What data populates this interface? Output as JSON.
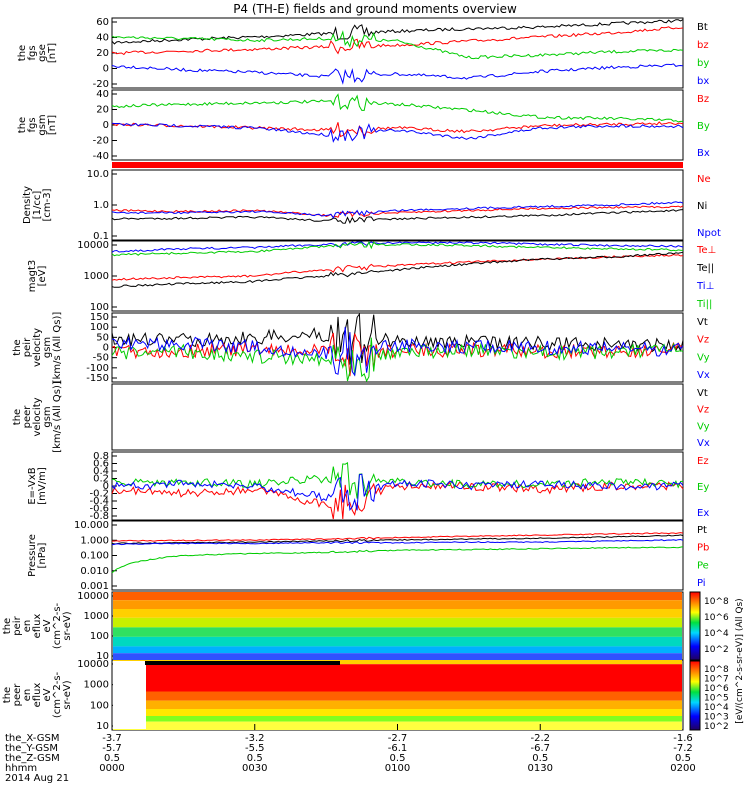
{
  "title": "P4 (TH-E) fields and ground moments overview",
  "colors": {
    "black": "#000000",
    "red": "#ff0000",
    "green": "#00cc00",
    "blue": "#0000ff"
  },
  "panels": [
    {
      "id": "fgs-gse",
      "ylabel": [
        "the",
        "fgs",
        "gse",
        "[nT]"
      ],
      "ticks": [
        "60",
        "40",
        "20",
        "0",
        "-20"
      ],
      "ylim": [
        -22,
        63
      ],
      "legend": [
        {
          "t": "Bt",
          "c": "black"
        },
        {
          "t": "bz",
          "c": "red"
        },
        {
          "t": "by",
          "c": "green"
        },
        {
          "t": "bx",
          "c": "blue"
        }
      ]
    },
    {
      "id": "fgs-gsm",
      "ylabel": [
        "the",
        "fgs",
        "gsm",
        "[nT]"
      ],
      "ticks": [
        "40",
        "20",
        "0",
        "-20",
        "-40"
      ],
      "ylim": [
        -50,
        48
      ],
      "legend": [
        {
          "t": "Bz",
          "c": "red"
        },
        {
          "t": "By",
          "c": "green"
        },
        {
          "t": "Bx",
          "c": "blue"
        }
      ]
    },
    {
      "id": "density",
      "ylabel": [
        "Density",
        "[1/cc]",
        "[cm-3]"
      ],
      "ticks": [
        "10.0",
        "1.0",
        "0.1"
      ],
      "log": true,
      "legend": [
        {
          "t": "Ne",
          "c": "red"
        },
        {
          "t": "Ni",
          "c": "black"
        },
        {
          "t": "Npot",
          "c": "blue"
        }
      ]
    },
    {
      "id": "temperature",
      "ylabel": [
        "magt3",
        "[eV]"
      ],
      "ticks": [
        "10000",
        "1000",
        "100"
      ],
      "log": true,
      "legend": [
        {
          "t": "Te⊥",
          "c": "red"
        },
        {
          "t": "Te||",
          "c": "black"
        },
        {
          "t": "Ti⊥",
          "c": "blue"
        },
        {
          "t": "Ti||",
          "c": "green"
        }
      ]
    },
    {
      "id": "peir-velocity",
      "ylabel": [
        "the",
        "peir",
        "velocity",
        "gsm",
        "[km/s (All Qs)]"
      ],
      "ticks": [
        "150",
        "100",
        "50",
        "0",
        "-50",
        "-100",
        "-150"
      ],
      "ylim": [
        -160,
        160
      ],
      "legend": [
        {
          "t": "Vt",
          "c": "black"
        },
        {
          "t": "Vz",
          "c": "red"
        },
        {
          "t": "Vy",
          "c": "green"
        },
        {
          "t": "Vx",
          "c": "blue"
        }
      ]
    },
    {
      "id": "peer-velocity",
      "ylabel": [
        "the",
        "peer",
        "velocity",
        "gsm",
        "[km/s (All Qs)]"
      ],
      "ticks": [],
      "legend": [
        {
          "t": "Vt",
          "c": "black"
        },
        {
          "t": "Vz",
          "c": "red"
        },
        {
          "t": "Vy",
          "c": "green"
        },
        {
          "t": "Vx",
          "c": "blue"
        }
      ]
    },
    {
      "id": "efield",
      "ylabel": [
        "E=-VxB",
        "[mV/m]"
      ],
      "ticks": [
        "0.8",
        "0.6",
        "0.4",
        "0.2",
        "0",
        "-0.2",
        "-0.4",
        "-0.6",
        "-0.8"
      ],
      "ylim": [
        -0.9,
        0.9
      ],
      "legend": [
        {
          "t": "Ez",
          "c": "red"
        },
        {
          "t": "Ey",
          "c": "green"
        },
        {
          "t": "Ex",
          "c": "blue"
        }
      ]
    },
    {
      "id": "pressure",
      "ylabel": [
        "Pressure",
        "[nPa]"
      ],
      "ticks": [
        "10.000",
        "1.000",
        "0.100",
        "0.010",
        "0.001"
      ],
      "log": true,
      "legend": [
        {
          "t": "Pt",
          "c": "black"
        },
        {
          "t": "Pb",
          "c": "red"
        },
        {
          "t": "Pe",
          "c": "green"
        },
        {
          "t": "Pi",
          "c": "blue"
        }
      ]
    },
    {
      "id": "peir-eflux",
      "ylabel": [
        "the",
        "peir",
        "en",
        "eflux",
        "eV",
        "(cm^2-s-",
        "sr-eV)"
      ],
      "ticks": [
        "10000",
        "1000",
        "100",
        "10"
      ]
    },
    {
      "id": "peer-eflux",
      "ylabel": [
        "the",
        "peer",
        "en",
        "eflux",
        "eV",
        "(cm^2-s-",
        "sr-eV)"
      ],
      "ticks": [
        "10000",
        "1000",
        "100",
        "10"
      ]
    }
  ],
  "colorbar": {
    "label": "[eV/(cm^2-s-sr-eV)] (All Qs)",
    "ticks1": [
      "10^8",
      "10^6",
      "10^4",
      "10^2"
    ],
    "ticks2": [
      "10^8",
      "10^7",
      "10^6",
      "10^5",
      "10^4",
      "10^3",
      "10^2"
    ]
  },
  "xaxis": {
    "row_labels": [
      "the_X-GSM",
      "the_Y-GSM",
      "the_Z-GSM",
      "hhmm",
      "2014 Aug 21"
    ],
    "columns": [
      {
        "x": "-3.7",
        "y": "-5.7",
        "z": "0.5",
        "t": "0000"
      },
      {
        "x": "-3.2",
        "y": "-5.5",
        "z": "0.5",
        "t": "0030"
      },
      {
        "x": "-2.7",
        "y": "-6.1",
        "z": "0.5",
        "t": "0100"
      },
      {
        "x": "-2.2",
        "y": "-6.7",
        "z": "0.5",
        "t": "0130"
      },
      {
        "x": "-1.6",
        "y": "-7.2",
        "z": "0.5",
        "t": "0200"
      }
    ]
  },
  "chart_data": {
    "type": "line",
    "x_unit": "hhmm UT, 2014 Aug 21",
    "x": [
      "0000",
      "0015",
      "0030",
      "0045",
      "0100",
      "0115",
      "0130",
      "0145",
      "0200"
    ],
    "panels": [
      {
        "name": "the fgs gse [nT]",
        "series": [
          {
            "name": "Bt",
            "values": [
              33,
              37,
              40,
              44,
              47,
              50,
              52,
              56,
              60
            ]
          },
          {
            "name": "bz",
            "values": [
              20,
              23,
              25,
              28,
              30,
              35,
              40,
              45,
              52
            ]
          },
          {
            "name": "by",
            "values": [
              40,
              38,
              36,
              38,
              35,
              15,
              18,
              22,
              24
            ]
          },
          {
            "name": "bx",
            "values": [
              5,
              0,
              -3,
              -8,
              -5,
              -10,
              -2,
              3,
              6
            ]
          }
        ]
      },
      {
        "name": "the fgs gsm [nT]",
        "series": [
          {
            "name": "Bz",
            "values": [
              0,
              -2,
              -5,
              -8,
              -5,
              -10,
              -2,
              0,
              2
            ]
          },
          {
            "name": "By",
            "values": [
              25,
              28,
              30,
              32,
              28,
              20,
              10,
              8,
              5
            ]
          },
          {
            "name": "Bx",
            "values": [
              0,
              -2,
              -5,
              -15,
              -8,
              -20,
              -5,
              -2,
              -3
            ]
          }
        ]
      },
      {
        "name": "Density [1/cc]",
        "series": [
          {
            "name": "Ne",
            "values": [
              0.7,
              0.65,
              0.7,
              0.5,
              0.6,
              0.7,
              0.8,
              0.85,
              0.9
            ]
          },
          {
            "name": "Ni",
            "values": [
              0.4,
              0.42,
              0.45,
              0.35,
              0.4,
              0.45,
              0.5,
              0.6,
              0.7
            ]
          },
          {
            "name": "Npot",
            "values": [
              0.6,
              0.6,
              0.65,
              0.5,
              0.7,
              0.8,
              0.9,
              1.0,
              1.2
            ]
          }
        ]
      },
      {
        "name": "magt3 [eV]",
        "series": [
          {
            "name": "Te⊥",
            "values": [
              800,
              900,
              1000,
              1500,
              2000,
              2500,
              3000,
              3500,
              4000
            ]
          },
          {
            "name": "Te||",
            "values": [
              500,
              600,
              700,
              1000,
              1500,
              2200,
              3000,
              3500,
              4500
            ]
          },
          {
            "name": "Ti⊥",
            "values": [
              5000,
              6000,
              6500,
              8000,
              9000,
              9000,
              8000,
              7500,
              7000
            ]
          },
          {
            "name": "Ti||",
            "values": [
              4000,
              4500,
              5000,
              7000,
              8000,
              7500,
              6500,
              6000,
              5500
            ]
          }
        ]
      },
      {
        "name": "the peir velocity gsm [km/s (All Qs)]",
        "series": [
          {
            "name": "Vt",
            "values": [
              40,
              35,
              45,
              60,
              30,
              25,
              20,
              15,
              10
            ]
          },
          {
            "name": "Vz",
            "values": [
              -20,
              -15,
              -10,
              -20,
              -15,
              -10,
              -20,
              -15,
              -10
            ]
          },
          {
            "name": "Vy",
            "values": [
              -30,
              -20,
              -40,
              -50,
              -20,
              -15,
              -25,
              -20,
              -15
            ]
          },
          {
            "name": "Vx",
            "values": [
              10,
              20,
              0,
              -30,
              10,
              5,
              0,
              -5,
              -10
            ]
          }
        ]
      },
      {
        "name": "E=-VxB [mV/m]",
        "series": [
          {
            "name": "Ez",
            "values": [
              -0.1,
              -0.2,
              -0.1,
              -0.5,
              0,
              0,
              -0.1,
              0,
              0
            ]
          },
          {
            "name": "Ey",
            "values": [
              0.1,
              0.1,
              0.05,
              0.2,
              0.1,
              0.05,
              0.05,
              0.1,
              0.05
            ]
          },
          {
            "name": "Ex",
            "values": [
              0,
              0.05,
              0,
              -0.3,
              0.1,
              0,
              0.05,
              0,
              0
            ]
          }
        ]
      },
      {
        "name": "Pressure [nPa]",
        "series": [
          {
            "name": "Pt",
            "values": [
              0.5,
              0.55,
              0.6,
              0.7,
              0.8,
              0.9,
              1.0,
              1.2,
              1.5
            ]
          },
          {
            "name": "Pb",
            "values": [
              0.7,
              0.75,
              0.8,
              0.9,
              1.1,
              1.3,
              1.5,
              1.8,
              2.0
            ]
          },
          {
            "name": "Pe",
            "values": [
              0.01,
              0.1,
              0.13,
              0.15,
              0.2,
              0.22,
              0.25,
              0.28,
              0.3
            ]
          },
          {
            "name": "Pi",
            "values": [
              0.45,
              0.5,
              0.5,
              0.55,
              0.55,
              0.6,
              0.6,
              0.7,
              0.8
            ]
          }
        ]
      }
    ]
  }
}
